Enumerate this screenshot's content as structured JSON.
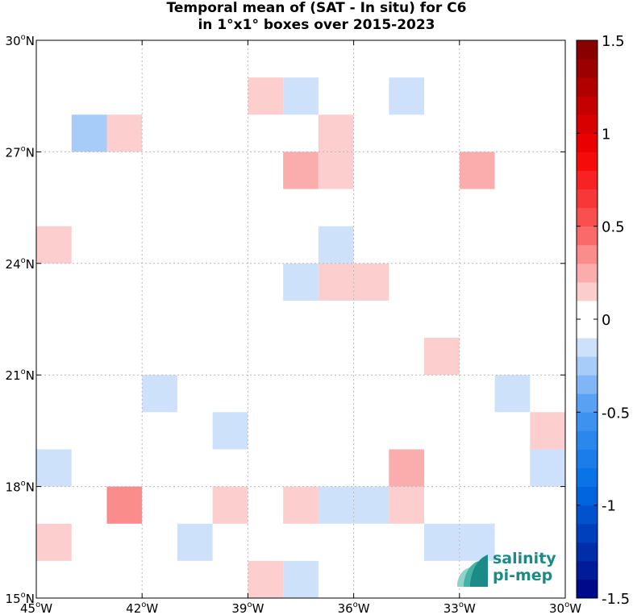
{
  "title": {
    "line1": "Temporal mean of (SAT - In situ) for C6",
    "line2": "in 1°x1° boxes over 2015-2023"
  },
  "logo": {
    "line1": "salinity",
    "line2": "pi-mep"
  },
  "chart_data": {
    "type": "heatmap",
    "title": "Temporal mean of (SAT - In situ) for C6 in 1°x1° boxes over 2015-2023",
    "x_axis": {
      "range": [
        -45,
        -30
      ],
      "ticks": [
        -45,
        -42,
        -39,
        -36,
        -33,
        -30
      ],
      "tick_labels": [
        "45",
        "42",
        "39",
        "36",
        "33",
        "30"
      ],
      "hemisphere": "W"
    },
    "y_axis": {
      "range": [
        15,
        30
      ],
      "ticks": [
        15,
        18,
        21,
        24,
        27,
        30
      ],
      "tick_labels": [
        "15",
        "18",
        "21",
        "24",
        "27",
        "30"
      ],
      "hemisphere": "N"
    },
    "grid": true,
    "colorbar": {
      "range": [
        -1.5,
        1.5
      ],
      "step": 0.1,
      "tick_values": [
        1.5,
        1,
        0.5,
        0,
        -0.5,
        -1,
        -1.5
      ],
      "tick_labels": [
        "1.5",
        "1",
        "0.5",
        "0",
        "-0.5",
        "-1",
        "-1.5"
      ],
      "white_band": [
        -0.1,
        0.1
      ],
      "low_color": "#000080",
      "mid_color": "#ffffff",
      "high_color": "#800000"
    },
    "cells": [
      {
        "lon": -38.5,
        "lat": 28.5,
        "value": 0.15
      },
      {
        "lon": -37.5,
        "lat": 28.5,
        "value": -0.15
      },
      {
        "lon": -34.5,
        "lat": 28.5,
        "value": -0.15
      },
      {
        "lon": -43.5,
        "lat": 27.5,
        "value": -0.25
      },
      {
        "lon": -42.5,
        "lat": 27.5,
        "value": 0.15
      },
      {
        "lon": -36.5,
        "lat": 27.5,
        "value": 0.15
      },
      {
        "lon": -37.5,
        "lat": 26.5,
        "value": 0.25
      },
      {
        "lon": -36.5,
        "lat": 26.5,
        "value": 0.15
      },
      {
        "lon": -32.5,
        "lat": 26.5,
        "value": 0.25
      },
      {
        "lon": -44.5,
        "lat": 24.5,
        "value": 0.15
      },
      {
        "lon": -36.5,
        "lat": 24.5,
        "value": -0.15
      },
      {
        "lon": -37.5,
        "lat": 23.5,
        "value": -0.15
      },
      {
        "lon": -36.5,
        "lat": 23.5,
        "value": 0.15
      },
      {
        "lon": -35.5,
        "lat": 23.5,
        "value": 0.15
      },
      {
        "lon": -33.5,
        "lat": 21.5,
        "value": 0.15
      },
      {
        "lon": -41.5,
        "lat": 20.5,
        "value": -0.15
      },
      {
        "lon": -31.5,
        "lat": 20.5,
        "value": -0.15
      },
      {
        "lon": -39.5,
        "lat": 19.5,
        "value": -0.15
      },
      {
        "lon": -30.5,
        "lat": 19.5,
        "value": 0.15
      },
      {
        "lon": -44.5,
        "lat": 18.5,
        "value": -0.15
      },
      {
        "lon": -34.5,
        "lat": 18.5,
        "value": 0.25
      },
      {
        "lon": -30.5,
        "lat": 18.5,
        "value": -0.15
      },
      {
        "lon": -42.5,
        "lat": 17.5,
        "value": 0.35
      },
      {
        "lon": -39.5,
        "lat": 17.5,
        "value": 0.15
      },
      {
        "lon": -37.5,
        "lat": 17.5,
        "value": 0.15
      },
      {
        "lon": -36.5,
        "lat": 17.5,
        "value": -0.15
      },
      {
        "lon": -35.5,
        "lat": 17.5,
        "value": -0.15
      },
      {
        "lon": -34.5,
        "lat": 17.5,
        "value": 0.15
      },
      {
        "lon": -44.5,
        "lat": 16.5,
        "value": 0.15
      },
      {
        "lon": -40.5,
        "lat": 16.5,
        "value": -0.15
      },
      {
        "lon": -33.5,
        "lat": 16.5,
        "value": -0.15
      },
      {
        "lon": -32.5,
        "lat": 16.5,
        "value": -0.15
      },
      {
        "lon": -38.5,
        "lat": 15.5,
        "value": 0.15
      },
      {
        "lon": -37.5,
        "lat": 15.5,
        "value": -0.15
      }
    ]
  }
}
